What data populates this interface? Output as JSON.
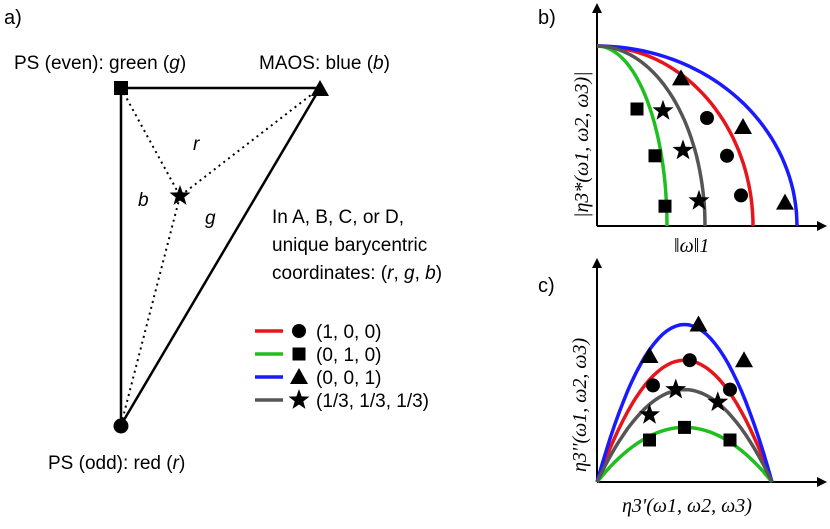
{
  "panels": {
    "a": "a)",
    "b": "b)",
    "c": "c)"
  },
  "triangle": {
    "ps_even_label": "PS (even): green (",
    "ps_even_var": "g",
    "maos_label": "MAOS: blue (",
    "maos_var": "b",
    "ps_odd_label": "PS (odd): red (",
    "ps_odd_var": "r",
    "close_paren": ")",
    "edge_label_r": "r",
    "edge_label_b": "b",
    "edge_label_g": "g"
  },
  "description": {
    "line1": "In A, B, C, or D,",
    "line2": "unique barycentric",
    "line3_prefix": "coordinates: (",
    "r": "r",
    "sep": ", ",
    "g": "g",
    "b": "b",
    "line3_suffix": ")"
  },
  "legend": [
    {
      "color": "#e8141b",
      "marker": "circle",
      "label": "(1, 0, 0)"
    },
    {
      "color": "#1fbf1f",
      "marker": "square",
      "label": "(0, 1, 0)"
    },
    {
      "color": "#1a1aff",
      "marker": "triangle",
      "label": "(0, 0, 1)"
    },
    {
      "color": "#555555",
      "marker": "star",
      "label": "(1/3, 1/3, 1/3)"
    }
  ],
  "chart_data": [
    {
      "type": "line",
      "title": "b)",
      "ylabel": "|η3*(ω1, ω2, ω3)|",
      "xlabel": "‖ω‖1",
      "series": [
        {
          "name": "(1, 0, 0)",
          "color": "#e8141b",
          "marker": "circle",
          "x_end": 0.78,
          "marker_points": [
            [
              0.55,
              0.6
            ],
            [
              0.65,
              0.39
            ],
            [
              0.72,
              0.17
            ]
          ]
        },
        {
          "name": "(0, 1, 0)",
          "color": "#1fbf1f",
          "marker": "square",
          "x_end": 0.35,
          "marker_points": [
            [
              0.2,
              0.65
            ],
            [
              0.29,
              0.39
            ],
            [
              0.34,
              0.11
            ]
          ]
        },
        {
          "name": "(0, 0, 1)",
          "color": "#1a1aff",
          "marker": "triangle",
          "x_end": 1.0,
          "marker_points": [
            [
              0.42,
              0.82
            ],
            [
              0.73,
              0.55
            ],
            [
              0.94,
              0.13
            ]
          ]
        },
        {
          "name": "(1/3, 1/3, 1/3)",
          "color": "#555555",
          "marker": "star",
          "x_end": 0.54,
          "marker_points": [
            [
              0.33,
              0.64
            ],
            [
              0.43,
              0.42
            ],
            [
              0.51,
              0.14
            ]
          ]
        }
      ]
    },
    {
      "type": "line",
      "title": "c)",
      "ylabel": "η3''(ω1, ω2, ω3)",
      "xlabel": "η3'(ω1, ω2, ω3)",
      "series": [
        {
          "name": "(1, 0, 0)",
          "color": "#e8141b",
          "marker": "circle",
          "peak": 0.58,
          "marker_points": [
            [
              0.32,
              0.46
            ],
            [
              0.53,
              0.58
            ],
            [
              0.76,
              0.44
            ]
          ]
        },
        {
          "name": "(0, 1, 0)",
          "color": "#1fbf1f",
          "marker": "square",
          "peak": 0.26,
          "marker_points": [
            [
              0.3,
              0.2
            ],
            [
              0.5,
              0.26
            ],
            [
              0.76,
              0.2
            ]
          ]
        },
        {
          "name": "(0, 0, 1)",
          "color": "#1a1aff",
          "marker": "triangle",
          "peak": 0.75,
          "marker_points": [
            [
              0.3,
              0.6
            ],
            [
              0.58,
              0.75
            ],
            [
              0.84,
              0.58
            ]
          ]
        },
        {
          "name": "(1/3, 1/3, 1/3)",
          "color": "#555555",
          "marker": "star",
          "peak": 0.44,
          "marker_points": [
            [
              0.3,
              0.32
            ],
            [
              0.45,
              0.44
            ],
            [
              0.69,
              0.38
            ]
          ]
        }
      ]
    }
  ]
}
